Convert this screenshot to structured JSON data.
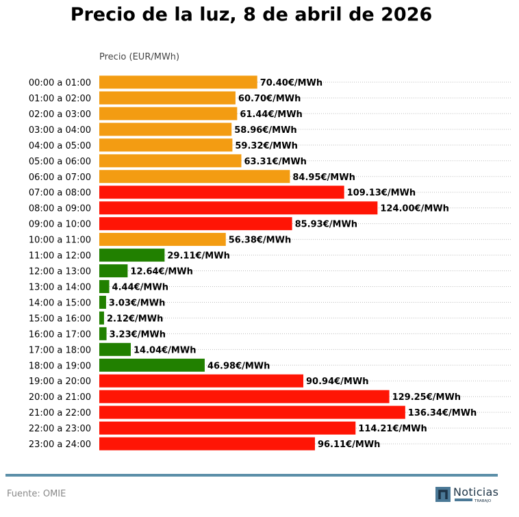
{
  "chart_data": {
    "type": "bar",
    "orientation": "horizontal",
    "title": "Precio de la luz, 8 de abril de 2026",
    "xlabel": "Precio (EUR/MWh)",
    "value_suffix": "€/MWh",
    "xlim": [
      0,
      184
    ],
    "grid": "dotted horizontal lines per category",
    "categories": [
      "00:00 a 01:00",
      "01:00 a 02:00",
      "02:00 a 03:00",
      "03:00 a 04:00",
      "04:00 a 05:00",
      "05:00 a 06:00",
      "06:00 a 07:00",
      "07:00 a 08:00",
      "08:00 a 09:00",
      "09:00 a 10:00",
      "10:00 a 11:00",
      "11:00 a 12:00",
      "12:00 a 13:00",
      "13:00 a 14:00",
      "14:00 a 15:00",
      "15:00 a 16:00",
      "16:00 a 17:00",
      "17:00 a 18:00",
      "18:00 a 19:00",
      "19:00 a 20:00",
      "20:00 a 21:00",
      "21:00 a 22:00",
      "22:00 a 23:00",
      "23:00 a 24:00"
    ],
    "values": [
      70.4,
      60.7,
      61.44,
      58.96,
      59.32,
      63.31,
      84.95,
      109.13,
      124.0,
      85.93,
      56.38,
      29.11,
      12.64,
      4.44,
      3.03,
      2.12,
      3.23,
      14.04,
      46.98,
      90.94,
      129.25,
      136.34,
      114.21,
      96.11
    ],
    "levels": [
      "medio",
      "medio",
      "medio",
      "medio",
      "medio",
      "medio",
      "medio",
      "alto",
      "alto",
      "alto",
      "medio",
      "bajo",
      "bajo",
      "bajo",
      "bajo",
      "bajo",
      "bajo",
      "bajo",
      "bajo",
      "alto",
      "alto",
      "alto",
      "alto",
      "alto"
    ],
    "colors": {
      "bajo": "#218000",
      "medio": "#f39c12",
      "alto": "#ff1505"
    }
  },
  "footer": {
    "source": "Fuente: OMIE",
    "logo_text": "Noticias",
    "logo_subtext": "TRABAJO",
    "rule_color": "#5b8fa8"
  }
}
